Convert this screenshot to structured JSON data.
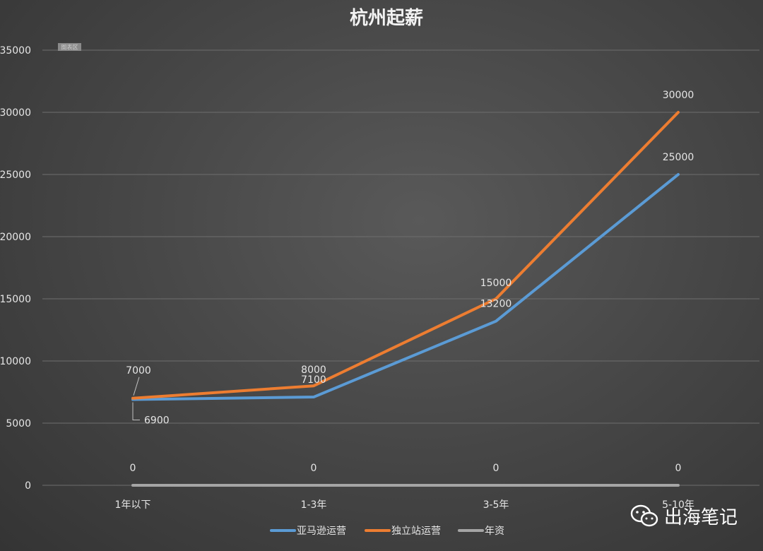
{
  "chart_data": {
    "type": "line",
    "title": "杭州起薪",
    "categories": [
      "1年以下",
      "1-3年",
      "3-5年",
      "5-10年"
    ],
    "ylim": [
      0,
      35000
    ],
    "yticks": [
      "0",
      "5000",
      "10000",
      "15000",
      "20000",
      "25000",
      "30000",
      "35000"
    ],
    "grid": true,
    "legend_position": "bottom",
    "plot_area_tag": "图表区",
    "series": [
      {
        "name": "亚马逊运营",
        "color": "#5b9bd5",
        "values": [
          6900,
          7100,
          13200,
          25000
        ],
        "labels": [
          "6900",
          "7100",
          "13200",
          "25000"
        ]
      },
      {
        "name": "独立站运营",
        "color": "#ed7d31",
        "values": [
          7000,
          8000,
          15000,
          30000
        ],
        "labels": [
          "7000",
          "8000",
          "15000",
          "30000"
        ]
      },
      {
        "name": "年资",
        "color": "#a5a5a5",
        "values": [
          0,
          0,
          0,
          0
        ],
        "labels": [
          "0",
          "0",
          "0",
          "0"
        ]
      }
    ]
  },
  "watermark": {
    "text": "出海笔记",
    "icon": "wechat-icon"
  }
}
